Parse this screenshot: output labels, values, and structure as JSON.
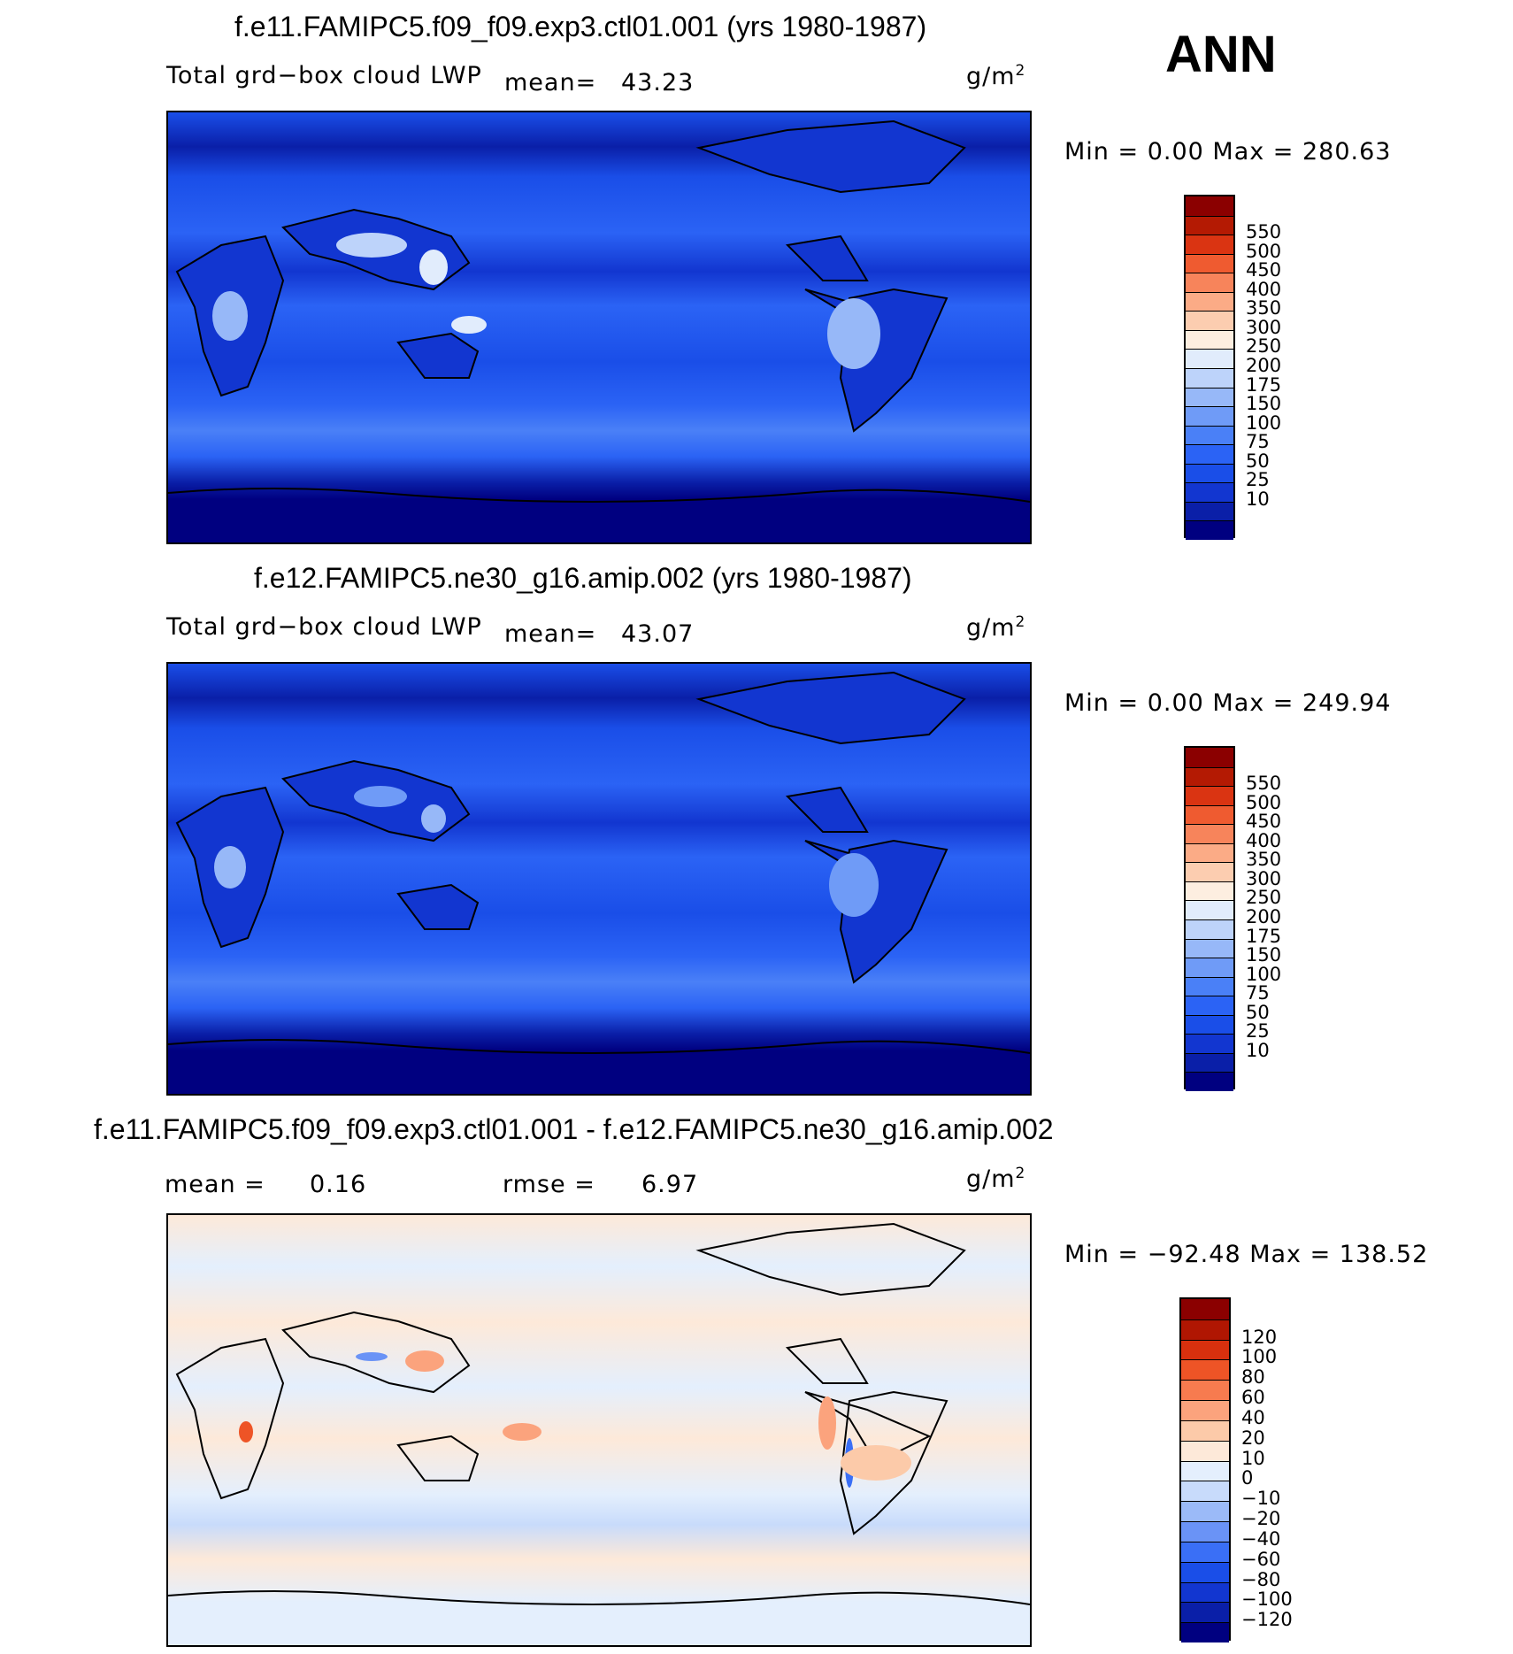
{
  "page_title": "ANN",
  "panels": [
    {
      "title": "f.e11.FAMIPC5.f09_f09.exp3.ctl01.001 (yrs 1980-1987)",
      "variable": "Total grd−box cloud LWP",
      "mean_label": "mean=",
      "mean_value": "43.23",
      "units": "g/m",
      "units_exp": "2",
      "minmax": "Min =     0.00 Max =  280.63",
      "colorbar": {
        "colors": [
          "#000080",
          "#0a1fa8",
          "#1236d0",
          "#1a4ee8",
          "#2b63f5",
          "#4a80f7",
          "#6f9bf7",
          "#97b8f8",
          "#bdd3fa",
          "#e1ecfc",
          "#fdeee0",
          "#fccdb0",
          "#fbab86",
          "#f7845b",
          "#ef5b30",
          "#da3412",
          "#b41a03",
          "#8b0000"
        ],
        "labels": [
          "10",
          "25",
          "50",
          "75",
          "100",
          "150",
          "175",
          "200",
          "250",
          "300",
          "350",
          "400",
          "450",
          "500",
          "550"
        ]
      }
    },
    {
      "title": "f.e12.FAMIPC5.ne30_g16.amip.002 (yrs 1980-1987)",
      "variable": "Total grd−box cloud LWP",
      "mean_label": "mean=",
      "mean_value": "43.07",
      "units": "g/m",
      "units_exp": "2",
      "minmax": "Min =     0.00 Max =  249.94",
      "colorbar": {
        "colors": [
          "#000080",
          "#0a1fa8",
          "#1236d0",
          "#1a4ee8",
          "#2b63f5",
          "#4a80f7",
          "#6f9bf7",
          "#97b8f8",
          "#bdd3fa",
          "#e1ecfc",
          "#fdeee0",
          "#fccdb0",
          "#fbab86",
          "#f7845b",
          "#ef5b30",
          "#da3412",
          "#b41a03",
          "#8b0000"
        ],
        "labels": [
          "10",
          "25",
          "50",
          "75",
          "100",
          "150",
          "175",
          "200",
          "250",
          "300",
          "350",
          "400",
          "450",
          "500",
          "550"
        ]
      }
    },
    {
      "title": "f.e11.FAMIPC5.f09_f09.exp3.ctl01.001 - f.e12.FAMIPC5.ne30_g16.amip.002",
      "mean_label": "mean =",
      "mean_value": "0.16",
      "rmse_label": "rmse =",
      "rmse_value": "6.97",
      "units": "g/m",
      "units_exp": "2",
      "minmax": "Min = −92.48 Max =  138.52",
      "colorbar": {
        "colors": [
          "#000080",
          "#0a1fa8",
          "#1236d0",
          "#1a4ee8",
          "#3a6ff6",
          "#6a93f6",
          "#9bbaf8",
          "#c8dbfb",
          "#e4effd",
          "#fde9d9",
          "#fccaa9",
          "#fba37d",
          "#f77b4f",
          "#ee5426",
          "#d8300e",
          "#b01602",
          "#8b0000"
        ],
        "labels": [
          "−120",
          "−100",
          "−80",
          "−60",
          "−40",
          "−20",
          "−10",
          "0",
          "10",
          "20",
          "40",
          "60",
          "80",
          "100",
          "120"
        ]
      }
    }
  ]
}
